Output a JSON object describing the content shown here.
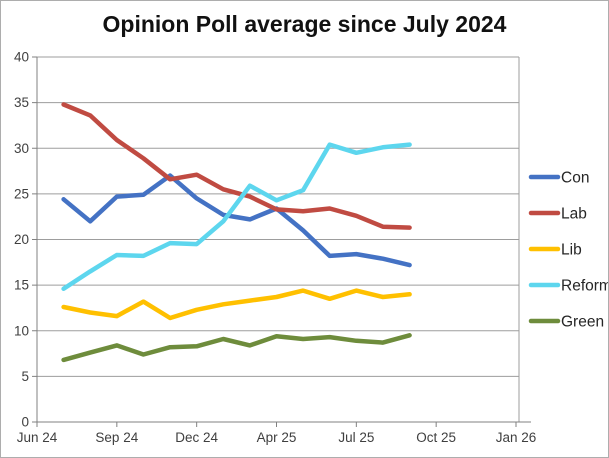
{
  "title": "Opinion Poll average since July 2024",
  "chart_data": {
    "type": "line",
    "title": "Opinion Poll average since July 2024",
    "categories": [
      "Jul 24",
      "Aug 24",
      "Sep 24",
      "Oct 24",
      "Nov 24",
      "Dec 24",
      "Feb 25",
      "Mar 25",
      "Apr 25",
      "May 25",
      "Jun 25",
      "Jul 25",
      "Aug 25",
      "Sep 25"
    ],
    "x_tick_labels": [
      "Jun 24",
      "Sep 24",
      "Dec 24",
      "Apr 25",
      "Jul 25",
      "Oct 25",
      "Jan 26"
    ],
    "x_tick_category_index": [
      0,
      3,
      6,
      9,
      12,
      15,
      18
    ],
    "data_start_category_index": 1,
    "x_axis_span_categories": 18.3,
    "y_ticks": [
      0,
      5,
      10,
      15,
      20,
      25,
      30,
      35,
      40
    ],
    "ylim": [
      0,
      40
    ],
    "grid": "horizontal",
    "legend_position": "right",
    "series": [
      {
        "name": "Con",
        "color": "#4472C4",
        "values": [
          24.4,
          22.0,
          24.7,
          24.9,
          27.0,
          24.5,
          22.7,
          22.2,
          23.4,
          21.0,
          18.2,
          18.4,
          17.9,
          17.2
        ]
      },
      {
        "name": "Lab",
        "color": "#C04B42",
        "values": [
          34.8,
          33.6,
          30.9,
          28.9,
          26.6,
          27.1,
          25.5,
          24.7,
          23.3,
          23.1,
          23.4,
          22.6,
          21.4,
          21.3
        ]
      },
      {
        "name": "Lib",
        "color": "#FFC000",
        "values": [
          12.6,
          12.0,
          11.6,
          13.2,
          11.4,
          12.3,
          12.9,
          13.3,
          13.7,
          14.4,
          13.5,
          14.4,
          13.7,
          14.0
        ]
      },
      {
        "name": "Reform",
        "color": "#5DD6EE",
        "values": [
          14.6,
          16.5,
          18.3,
          18.2,
          19.6,
          19.5,
          22.0,
          25.9,
          24.3,
          25.4,
          30.4,
          29.5,
          30.1,
          30.4
        ]
      },
      {
        "name": "Green",
        "color": "#6E8C3C",
        "values": [
          6.8,
          7.6,
          8.4,
          7.4,
          8.2,
          8.3,
          9.1,
          8.4,
          9.4,
          9.1,
          9.3,
          8.9,
          8.7,
          9.5
        ]
      }
    ],
    "style": {
      "gridline_color": "#9d9d9d",
      "axis_color": "#808080",
      "tick_label_color": "#3f3f3f",
      "legend_text_color": "#262626",
      "line_width": 4.5
    }
  }
}
